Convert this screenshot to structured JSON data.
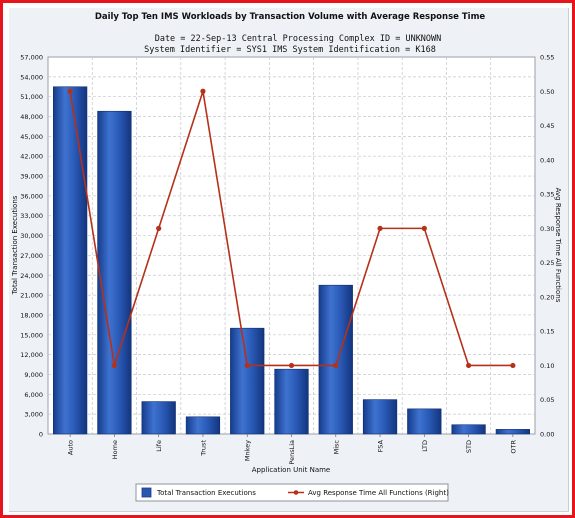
{
  "chart_data": {
    "type": "bar",
    "title": "Daily Top Ten IMS Workloads by Transaction Volume with Average Response Time",
    "subtitle_lines": [
      "Date = 22-Sep-13  Central Processing Complex ID = UNKNOWN",
      "System Identifier = SYS1  IMS System Identification = K168"
    ],
    "xlabel": "Application Unit Name",
    "ylabel_left": "Total Transaction Executions",
    "ylabel_right": "Avg Response Time All Functions",
    "categories": [
      "Auto",
      "Home",
      "Life",
      "Trust",
      "Mnkey",
      "PensLia",
      "Misc",
      "FSA",
      "LTD",
      "STD",
      "OTR"
    ],
    "ylim_left": [
      0,
      57000
    ],
    "yticks_left": [
      "0",
      "3,000",
      "6,000",
      "9,000",
      "12,000",
      "15,000",
      "18,000",
      "21,000",
      "24,000",
      "27,000",
      "30,000",
      "33,000",
      "36,000",
      "39,000",
      "42,000",
      "45,000",
      "48,000",
      "51,000",
      "54,000",
      "57,000"
    ],
    "ylim_right": [
      0,
      0.55
    ],
    "yticks_right": [
      "0.00",
      "0.05",
      "0.10",
      "0.15",
      "0.20",
      "0.25",
      "0.30",
      "0.35",
      "0.40",
      "0.45",
      "0.50",
      "0.55"
    ],
    "series": [
      {
        "name": "Total Transaction Executions",
        "kind": "bar",
        "axis": "left",
        "color": "#2a56b0",
        "values": [
          52500,
          48800,
          4900,
          2600,
          16000,
          9800,
          22500,
          5200,
          3800,
          1400,
          700
        ]
      },
      {
        "name": "Avg Response Time All Functions (Right)",
        "kind": "line",
        "axis": "right",
        "color": "#b5311a",
        "values": [
          0.5,
          0.1,
          0.3,
          0.5,
          0.1,
          0.1,
          0.1,
          0.3,
          0.3,
          0.1,
          0.1
        ]
      }
    ],
    "grid": true,
    "legend": "bottom"
  }
}
